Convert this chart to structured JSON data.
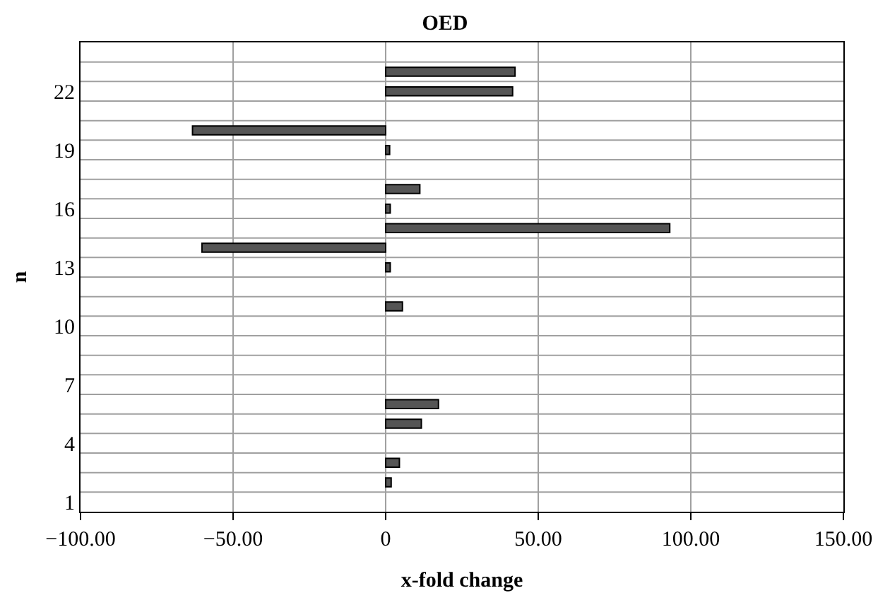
{
  "chart_data": {
    "type": "bar",
    "orientation": "horizontal",
    "title": "OED",
    "xlabel": "x-fold change",
    "ylabel": "n",
    "categories": [
      null,
      null,
      "22",
      null,
      null,
      "19",
      null,
      null,
      "16",
      null,
      null,
      "13",
      null,
      null,
      "10",
      null,
      null,
      "7",
      null,
      null,
      "4",
      null,
      null,
      "1"
    ],
    "values": [
      null,
      42.4,
      41.6,
      null,
      -63.3,
      1.3,
      null,
      11.2,
      1.5,
      93.1,
      -60.2,
      1.5,
      null,
      5.5,
      null,
      null,
      null,
      null,
      17.3,
      11.7,
      null,
      4.5,
      1.8,
      null
    ],
    "color": "#555555",
    "xlim": [
      -100,
      150
    ],
    "xticks": [
      {
        "value": -100,
        "label": "−100.00"
      },
      {
        "value": -50,
        "label": "−50.00"
      },
      0,
      {
        "value": 50,
        "label": "50.00"
      },
      {
        "value": 100,
        "label": "100.00"
      },
      {
        "value": 150,
        "label": "150.00"
      }
    ],
    "grid": true,
    "legend": false
  }
}
